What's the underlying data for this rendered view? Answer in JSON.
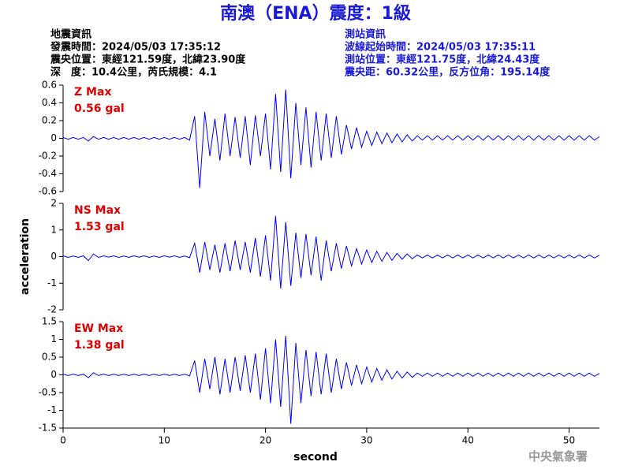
{
  "header": {
    "title": "南澳（ENA）震度：1級",
    "left": [
      "地震資訊",
      "發震時間：2024/05/03 17:35:12",
      "震央位置：東經121.59度，北緯23.90度",
      "深　度：10.4公里，芮氏規模：4.1"
    ],
    "right": [
      "測站資訊",
      "波線起始時間：2024/05/03 17:35:11",
      "測站位置：東經121.75度，北緯24.43度",
      "震央距：60.32公里，反方位角：195.14度"
    ]
  },
  "watermark": "中央氣象署",
  "chart_data": [
    {
      "type": "line",
      "label": "Z Max",
      "annotation": "0.56 gal",
      "color": "#0000ff",
      "xlim": [
        0,
        53
      ],
      "ylim": [
        -0.6,
        0.6
      ],
      "yticks": [
        -0.6,
        -0.4,
        -0.2,
        0,
        0.2,
        0.4,
        0.6
      ],
      "x": [
        0,
        0.5,
        1,
        1.5,
        2,
        2.5,
        3,
        3.5,
        4,
        4.5,
        5,
        5.5,
        6,
        6.5,
        7,
        7.5,
        8,
        8.5,
        9,
        9.5,
        10,
        10.5,
        11,
        11.5,
        12,
        12.5,
        13,
        13.5,
        14,
        14.5,
        15,
        15.5,
        16,
        16.5,
        17,
        17.5,
        18,
        18.5,
        19,
        19.5,
        20,
        20.5,
        21,
        21.5,
        22,
        22.5,
        23,
        23.5,
        24,
        24.5,
        25,
        25.5,
        26,
        26.5,
        27,
        27.5,
        28,
        28.5,
        29,
        29.5,
        30,
        30.5,
        31,
        31.5,
        32,
        32.5,
        33,
        33.5,
        34,
        34.5,
        35,
        35.5,
        36,
        36.5,
        37,
        37.5,
        38,
        38.5,
        39,
        39.5,
        40,
        40.5,
        41,
        41.5,
        42,
        42.5,
        43,
        43.5,
        44,
        44.5,
        45,
        45.5,
        46,
        46.5,
        47,
        47.5,
        48,
        48.5,
        49,
        49.5,
        50,
        50.5,
        51,
        51.5,
        52,
        52.5,
        53
      ],
      "values": [
        0.01,
        -0.01,
        0.01,
        -0.01,
        0.01,
        -0.03,
        0.02,
        -0.01,
        0.01,
        -0.01,
        0.01,
        -0.01,
        0.01,
        -0.01,
        0.01,
        -0.01,
        0.01,
        -0.01,
        0.01,
        -0.01,
        0.01,
        -0.01,
        0.01,
        -0.01,
        0.01,
        -0.02,
        0.25,
        -0.56,
        0.3,
        -0.2,
        0.22,
        -0.25,
        0.28,
        -0.2,
        0.24,
        -0.22,
        0.25,
        -0.3,
        0.26,
        -0.2,
        0.28,
        -0.35,
        0.5,
        -0.38,
        0.55,
        -0.45,
        0.4,
        -0.3,
        0.35,
        -0.33,
        0.3,
        -0.25,
        0.28,
        -0.22,
        0.25,
        -0.18,
        0.15,
        -0.12,
        0.12,
        -0.1,
        0.08,
        -0.08,
        0.07,
        -0.06,
        0.06,
        -0.05,
        0.05,
        -0.04,
        0.04,
        -0.03,
        0.03,
        -0.02,
        0.03,
        -0.02,
        0.03,
        -0.02,
        0.03,
        -0.02,
        0.03,
        -0.02,
        0.03,
        -0.02,
        0.03,
        -0.02,
        0.03,
        -0.02,
        0.03,
        -0.02,
        0.03,
        -0.02,
        0.03,
        -0.02,
        0.03,
        -0.02,
        0.03,
        -0.02,
        0.03,
        -0.02,
        0.03,
        -0.02,
        0.03,
        -0.02,
        0.03,
        -0.02,
        0.03,
        -0.02,
        0.02
      ]
    },
    {
      "type": "line",
      "label": "NS Max",
      "annotation": "1.53 gal",
      "color": "#0000ff",
      "ylabel": "acceleration",
      "xlim": [
        0,
        53
      ],
      "ylim": [
        -2,
        2
      ],
      "yticks": [
        -2,
        -1,
        0,
        1,
        2
      ],
      "x": [
        0,
        0.5,
        1,
        1.5,
        2,
        2.5,
        3,
        3.5,
        4,
        4.5,
        5,
        5.5,
        6,
        6.5,
        7,
        7.5,
        8,
        8.5,
        9,
        9.5,
        10,
        10.5,
        11,
        11.5,
        12,
        12.5,
        13,
        13.5,
        14,
        14.5,
        15,
        15.5,
        16,
        16.5,
        17,
        17.5,
        18,
        18.5,
        19,
        19.5,
        20,
        20.5,
        21,
        21.5,
        22,
        22.5,
        23,
        23.5,
        24,
        24.5,
        25,
        25.5,
        26,
        26.5,
        27,
        27.5,
        28,
        28.5,
        29,
        29.5,
        30,
        30.5,
        31,
        31.5,
        32,
        32.5,
        33,
        33.5,
        34,
        34.5,
        35,
        35.5,
        36,
        36.5,
        37,
        37.5,
        38,
        38.5,
        39,
        39.5,
        40,
        40.5,
        41,
        41.5,
        42,
        42.5,
        43,
        43.5,
        44,
        44.5,
        45,
        45.5,
        46,
        46.5,
        47,
        47.5,
        48,
        48.5,
        49,
        49.5,
        50,
        50.5,
        51,
        51.5,
        52,
        52.5,
        53
      ],
      "values": [
        0.03,
        -0.03,
        0.02,
        -0.03,
        0.03,
        -0.15,
        0.1,
        -0.03,
        0.03,
        -0.02,
        0.03,
        -0.03,
        0.02,
        -0.03,
        0.03,
        -0.02,
        0.03,
        -0.03,
        0.02,
        -0.03,
        0.03,
        -0.02,
        0.03,
        -0.03,
        0.02,
        -0.04,
        0.5,
        -0.6,
        0.55,
        -0.5,
        0.45,
        -0.6,
        0.5,
        -0.55,
        0.6,
        -0.5,
        0.55,
        -0.6,
        0.7,
        -0.75,
        0.8,
        -0.9,
        1.53,
        -1.2,
        1.3,
        -1.1,
        0.9,
        -0.8,
        0.85,
        -0.7,
        0.75,
        -0.9,
        0.6,
        -0.55,
        0.5,
        -0.45,
        0.4,
        -0.35,
        0.3,
        -0.28,
        0.25,
        -0.22,
        0.2,
        -0.18,
        0.16,
        -0.14,
        0.12,
        -0.1,
        0.1,
        -0.08,
        0.06,
        -0.05,
        0.06,
        -0.05,
        0.06,
        -0.05,
        0.06,
        -0.05,
        0.06,
        -0.05,
        0.06,
        -0.05,
        0.06,
        -0.05,
        0.06,
        -0.05,
        0.06,
        -0.05,
        0.06,
        -0.05,
        0.06,
        -0.05,
        0.06,
        -0.05,
        0.06,
        -0.05,
        0.06,
        -0.05,
        0.06,
        -0.05,
        0.06,
        -0.05,
        0.06,
        -0.05,
        0.06,
        -0.05,
        0.05
      ]
    },
    {
      "type": "line",
      "label": "EW Max",
      "annotation": "1.38 gal",
      "color": "#0000ff",
      "xlabel": "second",
      "xlim": [
        0,
        53
      ],
      "xticks": [
        0,
        10,
        20,
        30,
        40,
        50
      ],
      "ylim": [
        -1.5,
        1.5
      ],
      "yticks": [
        -1.5,
        -1,
        -0.5,
        0,
        0.5,
        1,
        1.5
      ],
      "x": [
        0,
        0.5,
        1,
        1.5,
        2,
        2.5,
        3,
        3.5,
        4,
        4.5,
        5,
        5.5,
        6,
        6.5,
        7,
        7.5,
        8,
        8.5,
        9,
        9.5,
        10,
        10.5,
        11,
        11.5,
        12,
        12.5,
        13,
        13.5,
        14,
        14.5,
        15,
        15.5,
        16,
        16.5,
        17,
        17.5,
        18,
        18.5,
        19,
        19.5,
        20,
        20.5,
        21,
        21.5,
        22,
        22.5,
        23,
        23.5,
        24,
        24.5,
        25,
        25.5,
        26,
        26.5,
        27,
        27.5,
        28,
        28.5,
        29,
        29.5,
        30,
        30.5,
        31,
        31.5,
        32,
        32.5,
        33,
        33.5,
        34,
        34.5,
        35,
        35.5,
        36,
        36.5,
        37,
        37.5,
        38,
        38.5,
        39,
        39.5,
        40,
        40.5,
        41,
        41.5,
        42,
        42.5,
        43,
        43.5,
        44,
        44.5,
        45,
        45.5,
        46,
        46.5,
        47,
        47.5,
        48,
        48.5,
        49,
        49.5,
        50,
        50.5,
        51,
        51.5,
        52,
        52.5,
        53
      ],
      "values": [
        0.02,
        -0.02,
        0.02,
        -0.02,
        0.02,
        -0.08,
        0.06,
        -0.02,
        0.02,
        -0.02,
        0.02,
        -0.02,
        0.02,
        -0.02,
        0.02,
        -0.02,
        0.02,
        -0.02,
        0.02,
        -0.02,
        0.02,
        -0.02,
        0.02,
        -0.02,
        0.02,
        -0.03,
        0.4,
        -0.5,
        0.45,
        -0.4,
        0.5,
        -0.55,
        0.45,
        -0.5,
        0.5,
        -0.45,
        0.55,
        -0.5,
        0.6,
        -0.7,
        0.75,
        -0.8,
        1.0,
        -0.9,
        1.1,
        -1.38,
        0.9,
        -0.8,
        0.7,
        -0.6,
        0.65,
        -0.55,
        0.6,
        -0.5,
        0.45,
        -0.4,
        0.35,
        -0.3,
        0.28,
        -0.25,
        0.22,
        -0.2,
        0.18,
        -0.15,
        0.14,
        -0.12,
        0.1,
        -0.09,
        0.08,
        -0.07,
        0.05,
        -0.04,
        0.05,
        -0.04,
        0.05,
        -0.04,
        0.05,
        -0.04,
        0.05,
        -0.04,
        0.05,
        -0.04,
        0.05,
        -0.04,
        0.05,
        -0.04,
        0.05,
        -0.04,
        0.05,
        -0.04,
        0.05,
        -0.04,
        0.05,
        -0.04,
        0.05,
        -0.04,
        0.05,
        -0.04,
        0.05,
        -0.04,
        0.05,
        -0.04,
        0.05,
        -0.04,
        0.05,
        -0.04,
        0.04
      ]
    }
  ]
}
